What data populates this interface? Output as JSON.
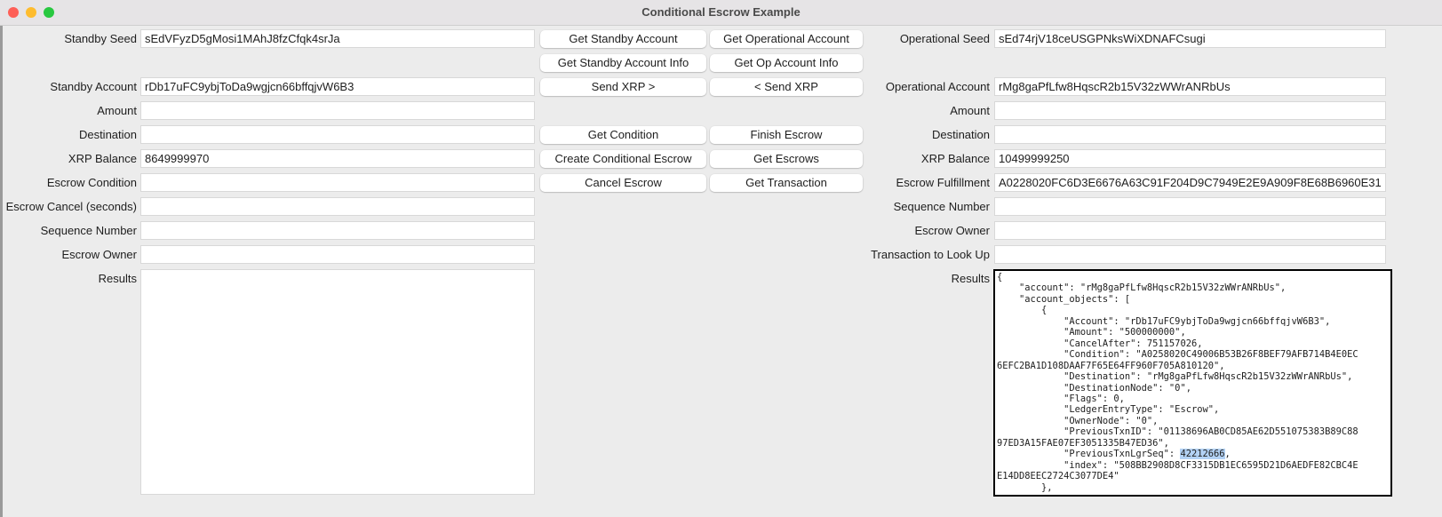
{
  "window": {
    "title": "Conditional Escrow Example",
    "traffic_lights": [
      "#fe5f57",
      "#febc2e",
      "#28c840"
    ]
  },
  "standby": {
    "fields": [
      {
        "label": "Standby Seed",
        "value": "sEdVFyzD5gMosi1MAhJ8fzCfqk4srJa"
      },
      {
        "label": "Standby Account",
        "value": "rDb17uFC9ybjToDa9wgjcn66bffqjvW6B3"
      },
      {
        "label": "Amount",
        "value": ""
      },
      {
        "label": "Destination",
        "value": ""
      },
      {
        "label": "XRP Balance",
        "value": "8649999970"
      },
      {
        "label": "Escrow Condition",
        "value": ""
      },
      {
        "label": "Escrow Cancel (seconds)",
        "value": ""
      },
      {
        "label": "Sequence Number",
        "value": ""
      },
      {
        "label": "Escrow Owner",
        "value": ""
      }
    ],
    "results_label": "Results",
    "results": ""
  },
  "buttons": {
    "left": [
      "Get Standby Account",
      "Get Standby Account Info",
      "Send XRP >",
      "Get Condition",
      "Create Conditional Escrow",
      "Cancel Escrow"
    ],
    "right": [
      "Get Operational Account",
      "Get Op Account Info",
      "< Send XRP",
      "Finish Escrow",
      "Get Escrows",
      "Get Transaction"
    ]
  },
  "operational": {
    "fields": [
      {
        "label": "Operational Seed",
        "value": "sEd74rjV18ceUSGPNksWiXDNAFCsugi"
      },
      {
        "label": "Operational Account",
        "value": "rMg8gaPfLfw8HqscR2b15V32zWWrANRbUs"
      },
      {
        "label": "Amount",
        "value": ""
      },
      {
        "label": "Destination",
        "value": ""
      },
      {
        "label": "XRP Balance",
        "value": "10499999250"
      },
      {
        "label": "Escrow Fulfillment",
        "value": "A0228020FC6D3E6676A63C91F204D9C7949E2E9A909F8E68B6960E31"
      },
      {
        "label": "Sequence Number",
        "value": ""
      },
      {
        "label": "Escrow Owner",
        "value": ""
      },
      {
        "label": "Transaction to Look Up",
        "value": ""
      }
    ],
    "results_label": "Results",
    "results_before_selection": "{\n    \"account\": \"rMg8gaPfLfw8HqscR2b15V32zWWrANRbUs\",\n    \"account_objects\": [\n        {\n            \"Account\": \"rDb17uFC9ybjToDa9wgjcn66bffqjvW6B3\",\n            \"Amount\": \"500000000\",\n            \"CancelAfter\": 751157026,\n            \"Condition\": \"A0258020C49006B53B26F8BEF79AFB714B4E0EC\n6EFC2BA1D108DAAF7F65E64FF960F705A810120\",\n            \"Destination\": \"rMg8gaPfLfw8HqscR2b15V32zWWrANRbUs\",\n            \"DestinationNode\": \"0\",\n            \"Flags\": 0,\n            \"LedgerEntryType\": \"Escrow\",\n            \"OwnerNode\": \"0\",\n            \"PreviousTxnID\": \"01138696AB0CD85AE62D551075383B89C88\n97ED3A15FAE07EF3051335B47ED36\",\n            \"PreviousTxnLgrSeq\": ",
    "results_selected": "42212666",
    "results_after_selection": ",\n            \"index\": \"508BB2908D8CF3315DB1EC6595D21D6AEDFE82CBC4E\nE14DD8EEC2724C3077DE4\"\n        },"
  }
}
